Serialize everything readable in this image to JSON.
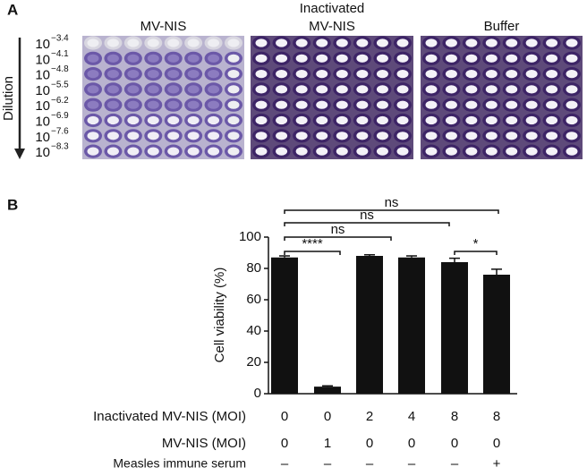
{
  "panel_a": {
    "label": "A",
    "dilution_axis_label": "Dilution",
    "plate_titles": [
      [
        "MV-NIS"
      ],
      [
        "Inactivated",
        "MV-NIS"
      ],
      [
        "Buffer"
      ]
    ],
    "dilutions": [
      {
        "base": "10",
        "exponent": "−3.4"
      },
      {
        "base": "10",
        "exponent": "−4.1"
      },
      {
        "base": "10",
        "exponent": "−4.8"
      },
      {
        "base": "10",
        "exponent": "−5.5"
      },
      {
        "base": "10",
        "exponent": "−6.2"
      },
      {
        "base": "10",
        "exponent": "−6.9"
      },
      {
        "base": "10",
        "exponent": "−7.6"
      },
      {
        "base": "10",
        "exponent": "−8.3"
      }
    ]
  },
  "chart_data": {
    "type": "bar",
    "panel_label": "B",
    "y_label": "Cell viability (%)",
    "values": [
      87,
      4.5,
      88,
      87,
      84,
      76
    ],
    "errors": [
      1,
      0.5,
      0.7,
      1,
      2.5,
      3.5
    ],
    "color": "#111111",
    "ylim": [
      0,
      100
    ],
    "yticks": [
      0,
      20,
      40,
      60,
      80,
      100
    ],
    "annotations": [
      "ns",
      "ns",
      "ns",
      "****",
      "*"
    ],
    "conditions": [
      {
        "name": "Inactivated MV-NIS (MOI)",
        "values": [
          0,
          0,
          2,
          4,
          8,
          8
        ]
      },
      {
        "name": "MV-NIS (MOI)",
        "values": [
          0,
          1,
          0,
          0,
          0,
          0
        ]
      },
      {
        "name": "Measles immune serum",
        "values": [
          "–",
          "–",
          "–",
          "–",
          "–",
          "+"
        ]
      }
    ]
  }
}
